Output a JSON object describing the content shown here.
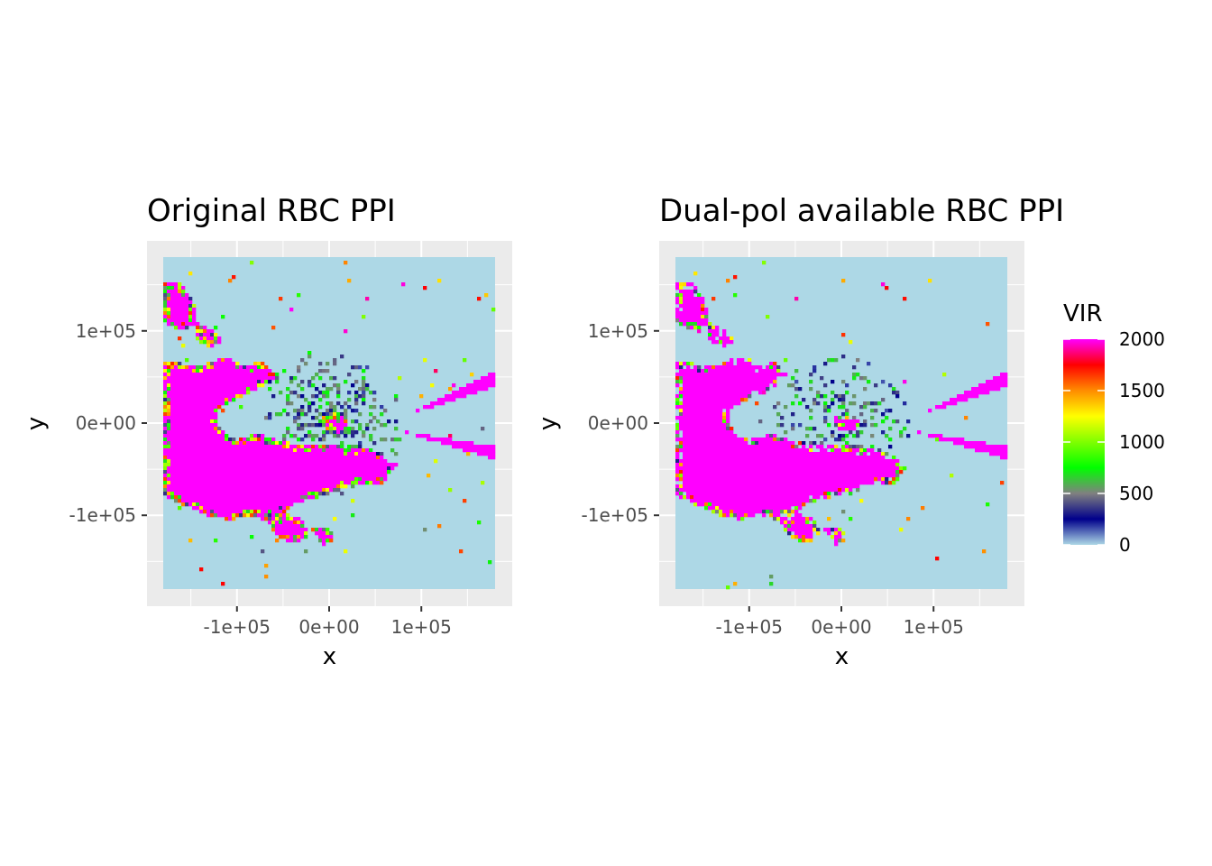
{
  "chart_data": [
    {
      "type": "heatmap",
      "title": "Original RBC PPI",
      "xlabel": "x",
      "ylabel": "y",
      "x_ticks": [
        "-1e+05",
        "0e+00",
        "1e+05"
      ],
      "y_ticks": [
        "1e+05",
        "0e+00",
        "-1e+05"
      ],
      "x_tick_values": [
        -100000,
        0,
        100000
      ],
      "y_tick_values": [
        100000,
        0,
        -100000
      ],
      "xlim": [
        -180000,
        180000
      ],
      "ylim": [
        -180000,
        180000
      ],
      "grid": true,
      "value_variable": "VIR",
      "dualpol_mask": false
    },
    {
      "type": "heatmap",
      "title": "Dual-pol available RBC PPI",
      "xlabel": "x",
      "ylabel": "y",
      "x_ticks": [
        "-1e+05",
        "0e+00",
        "1e+05"
      ],
      "y_ticks": [
        "1e+05",
        "0e+00",
        "-1e+05"
      ],
      "x_tick_values": [
        -100000,
        0,
        100000
      ],
      "y_tick_values": [
        100000,
        0,
        -100000
      ],
      "xlim": [
        -180000,
        180000
      ],
      "ylim": [
        -180000,
        180000
      ],
      "grid": true,
      "value_variable": "VIR",
      "dualpol_mask": true
    }
  ],
  "legend": {
    "title": "VIR",
    "placement": "right",
    "range": [
      0,
      2000
    ],
    "tick_values": [
      2000,
      1500,
      1000,
      500,
      0
    ],
    "tick_labels": [
      "2000",
      "1500",
      "1000",
      "500",
      "0"
    ],
    "color_stops": [
      {
        "value": 0,
        "color": "#add8e6"
      },
      {
        "value": 250,
        "color": "#00008b"
      },
      {
        "value": 500,
        "color": "#808080"
      },
      {
        "value": 750,
        "color": "#00ff00"
      },
      {
        "value": 1000,
        "color": "#7fff00"
      },
      {
        "value": 1250,
        "color": "#ffff00"
      },
      {
        "value": 1500,
        "color": "#ff8c00"
      },
      {
        "value": 1750,
        "color": "#ff0000"
      },
      {
        "value": 2000,
        "color": "#ff00ff"
      }
    ]
  },
  "colors": {
    "panel_background": "#ebebeb",
    "grid_line": "#ffffff",
    "no_data_background": "#add8e6",
    "high_value": "#ff00ff"
  }
}
